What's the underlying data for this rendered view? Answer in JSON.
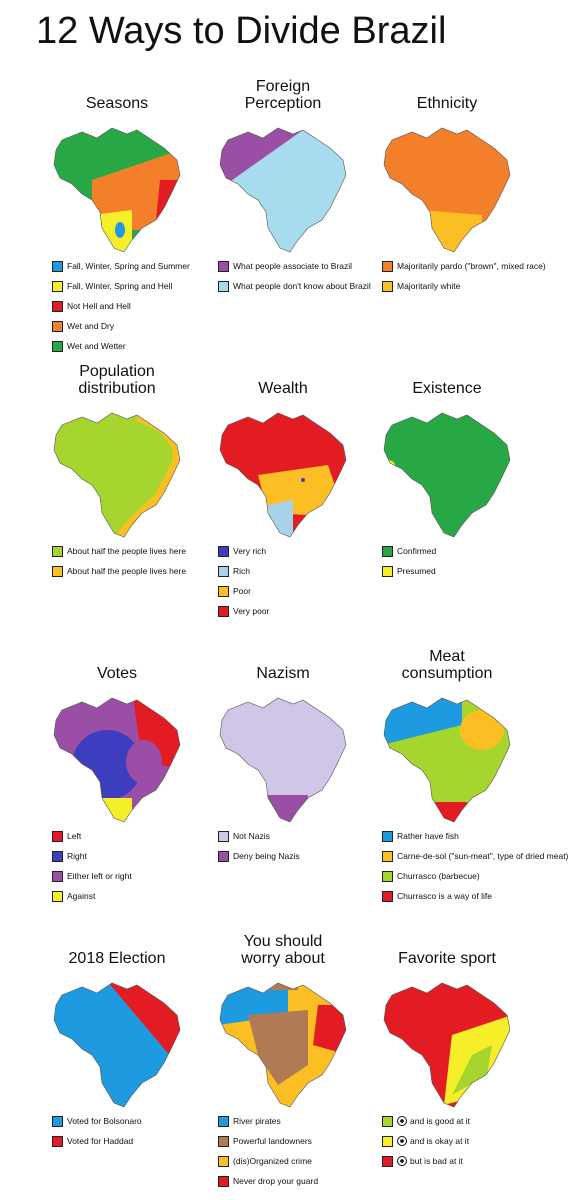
{
  "title": "12 Ways to Divide Brazil",
  "panels": [
    {
      "title": "Seasons",
      "legend": [
        {
          "label": "Fall, Winter, Spring and Summer",
          "color": "#1e9be0"
        },
        {
          "label": "Fall, Winter, Spring and Hell",
          "color": "#f7ee2a"
        },
        {
          "label": "Not Hell and Hell",
          "color": "#e31c24"
        },
        {
          "label": "Wet and Dry",
          "color": "#f47f2a"
        },
        {
          "label": "Wet and Wetter",
          "color": "#27a845"
        }
      ]
    },
    {
      "title": "Foreign Perception",
      "legend": [
        {
          "label": "What people associate to Brazil",
          "color": "#9b4ea5"
        },
        {
          "label": "What people don't know about Brazil",
          "color": "#a6dcee"
        }
      ]
    },
    {
      "title": "Ethnicity",
      "legend": [
        {
          "label": "Majoritarily pardo (\"brown\", mixed race)",
          "color": "#f47f2a"
        },
        {
          "label": "Majoritarily white",
          "color": "#fbbf23"
        }
      ]
    },
    {
      "title": "Population distribution",
      "legend": [
        {
          "label": "About half the people lives here",
          "color": "#a6d62e"
        },
        {
          "label": "About half the people lives here",
          "color": "#fbbf23"
        }
      ]
    },
    {
      "title": "Wealth",
      "legend": [
        {
          "label": "Very rich",
          "color": "#3d3dbf"
        },
        {
          "label": "Rich",
          "color": "#a6d3ea"
        },
        {
          "label": "Poor",
          "color": "#fbbf23"
        },
        {
          "label": "Very poor",
          "color": "#e31c24"
        }
      ]
    },
    {
      "title": "Existence",
      "legend": [
        {
          "label": "Confirmed",
          "color": "#27a845"
        },
        {
          "label": "Presumed",
          "color": "#f7ee2a"
        }
      ]
    },
    {
      "title": "Votes",
      "legend": [
        {
          "label": "Left",
          "color": "#e31c24"
        },
        {
          "label": "Right",
          "color": "#3d3dbf"
        },
        {
          "label": "Either left or right",
          "color": "#9b4ea5"
        },
        {
          "label": "Against",
          "color": "#f7ee2a"
        }
      ]
    },
    {
      "title": "Nazism",
      "legend": [
        {
          "label": "Not Nazis",
          "color": "#cfc6e8"
        },
        {
          "label": "Deny being Nazis",
          "color": "#9b4ea5"
        }
      ]
    },
    {
      "title": "Meat consumption",
      "legend": [
        {
          "label": "Rather have fish",
          "color": "#1e9be0"
        },
        {
          "label": "Carne-de-sol (\"sun-meat\", type of dried meat)",
          "color": "#fbbf23"
        },
        {
          "label": "Churrasco (barbecue)",
          "color": "#a6d62e"
        },
        {
          "label": "Churrasco is a way of life",
          "color": "#e31c24"
        }
      ]
    },
    {
      "title": "2018 Election",
      "legend": [
        {
          "label": "Voted for Bolsonaro",
          "color": "#1e9be0"
        },
        {
          "label": "Voted for Haddad",
          "color": "#e31c24"
        }
      ]
    },
    {
      "title": "You should worry about",
      "legend": [
        {
          "label": "River pirates",
          "color": "#1e9be0"
        },
        {
          "label": "Powerful landowners",
          "color": "#b07a55"
        },
        {
          "label": "(dis)Organized crime",
          "color": "#fbbf23"
        },
        {
          "label": "Never drop your guard",
          "color": "#e31c24"
        }
      ]
    },
    {
      "title": "Favorite sport",
      "legend": [
        {
          "label": "and is good at it",
          "color": "#a6d62e"
        },
        {
          "label": "and is okay at it",
          "color": "#f7ee2a"
        },
        {
          "label": "but is bad at it",
          "color": "#e31c24"
        }
      ]
    }
  ]
}
